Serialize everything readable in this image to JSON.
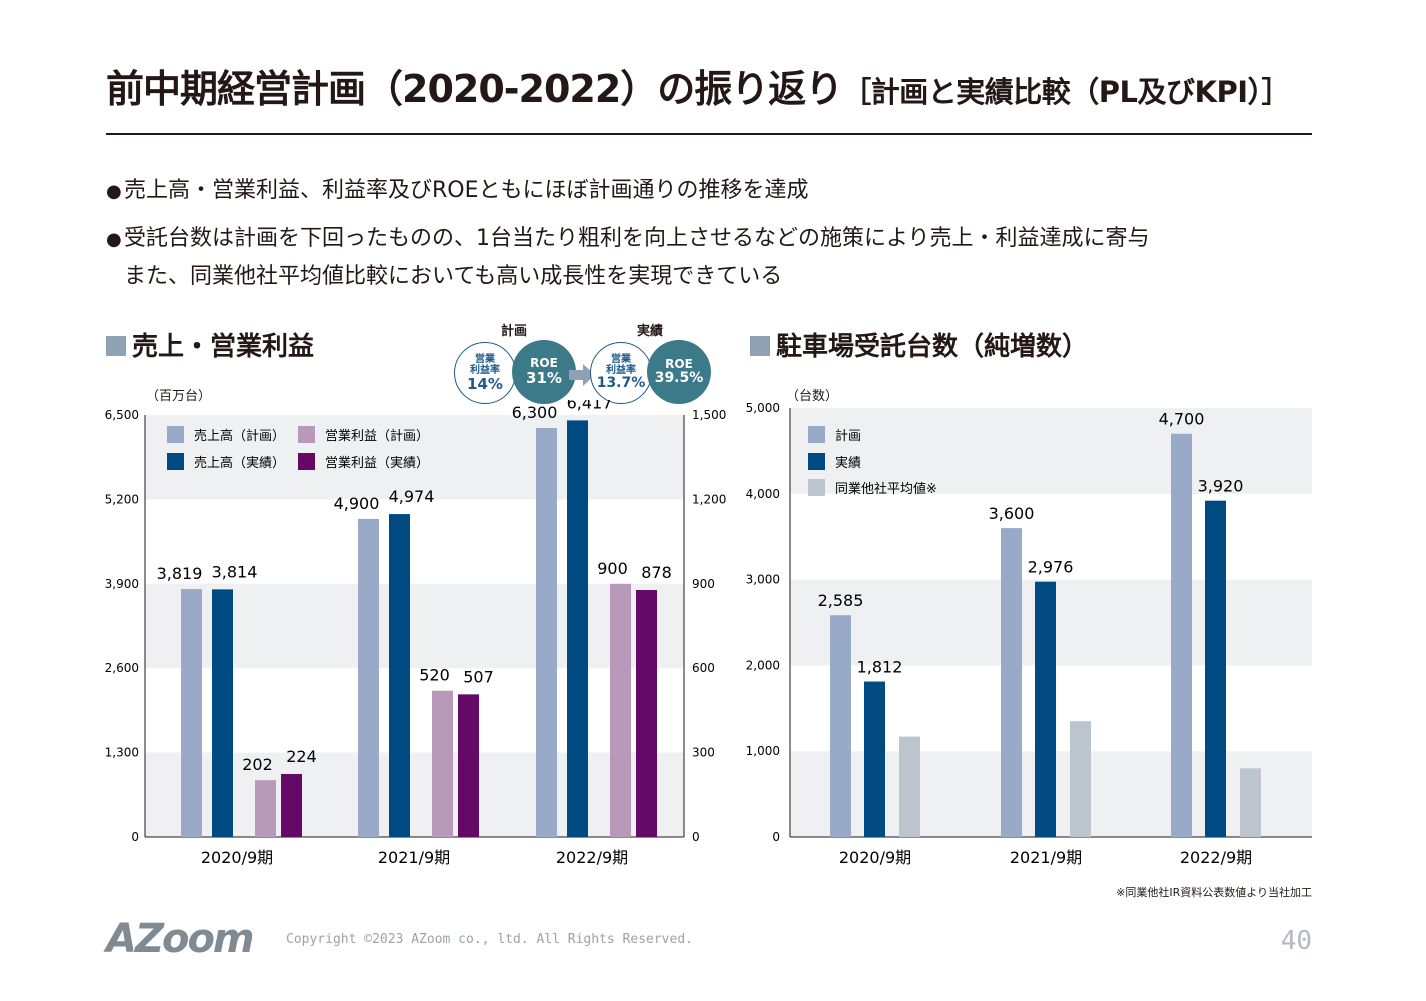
{
  "title": "前中期経営計画（2020-2022）の振り返り",
  "subtitle": "［計画と実績比較（PL及びKPI）］",
  "bullets": [
    "売上高・営業利益、利益率及びROEともにほぼ計画通りの推移を達成",
    "受託台数は計画を下回ったものの、1台当たり粗利を向上させるなどの施策により売上・利益達成に寄与"
  ],
  "bullet_continuation": "また、同業他社平均値比較においても高い成長性を実現できている",
  "kpi": {
    "plan_label": "計画",
    "actual_label": "実績",
    "plan_margin_label": "営業\n利益率",
    "plan_margin": "14%",
    "plan_roe_label": "ROE",
    "plan_roe": "31%",
    "actual_margin_label": "営業\n利益率",
    "actual_margin": "13.7%",
    "actual_roe_label": "ROE",
    "actual_roe": "39.5%"
  },
  "colors": {
    "sales_plan": "#98aac8",
    "sales_actual": "#004a82",
    "profit_plan": "#b999ba",
    "profit_actual": "#640a66",
    "peer": "#bcc5cd",
    "band": "#eef0f2"
  },
  "chart_data": [
    {
      "type": "bar",
      "title": "売上・営業利益",
      "ylabel": "（百万台）",
      "categories": [
        "2020/9期",
        "2021/9期",
        "2022/9期"
      ],
      "ylim": [
        0,
        6500
      ],
      "yticks": [
        "0",
        "1,300",
        "2,600",
        "3,900",
        "5,200",
        "6,500"
      ],
      "y2lim": [
        0,
        1500
      ],
      "y2ticks": [
        "0",
        "300",
        "600",
        "900",
        "1,200",
        "1,500"
      ],
      "series": [
        {
          "name": "売上高（計画）",
          "axis": "left",
          "values": [
            3819,
            4900,
            6300
          ],
          "labels": [
            "3,819",
            "4,900",
            "6,300"
          ]
        },
        {
          "name": "売上高（実績）",
          "axis": "left",
          "values": [
            3814,
            4974,
            6417
          ],
          "labels": [
            "3,814",
            "4,974",
            "6,417"
          ]
        },
        {
          "name": "営業利益（計画）",
          "axis": "right",
          "values": [
            202,
            520,
            900
          ],
          "labels": [
            "202",
            "520",
            "900"
          ]
        },
        {
          "name": "営業利益（実績）",
          "axis": "right",
          "values": [
            224,
            507,
            878
          ],
          "labels": [
            "224",
            "507",
            "878"
          ]
        }
      ],
      "legend": "top-left",
      "grid": "horizontal bands"
    },
    {
      "type": "bar",
      "title": "駐車場受託台数（純増数）",
      "ylabel": "（台数）",
      "categories": [
        "2020/9期",
        "2021/9期",
        "2022/9期"
      ],
      "ylim": [
        0,
        5000
      ],
      "yticks": [
        "0",
        "1,000",
        "2,000",
        "3,000",
        "4,000",
        "5,000"
      ],
      "series": [
        {
          "name": "計画",
          "values": [
            2585,
            3600,
            4700
          ],
          "labels": [
            "2,585",
            "3,600",
            "4,700"
          ]
        },
        {
          "name": "実績",
          "values": [
            1812,
            2976,
            3920
          ],
          "labels": [
            "1,812",
            "2,976",
            "3,920"
          ]
        },
        {
          "name": "同業他社平均値※",
          "values": [
            1170,
            1350,
            800
          ],
          "labels": []
        }
      ],
      "legend": "top-left",
      "grid": "horizontal bands"
    }
  ],
  "footnote": "※同業他社IR資料公表数値より当社加工",
  "logo": "AZoom",
  "copyright": "Copyright ©2023 AZoom co., ltd. All Rights Reserved.",
  "page_number": "40"
}
